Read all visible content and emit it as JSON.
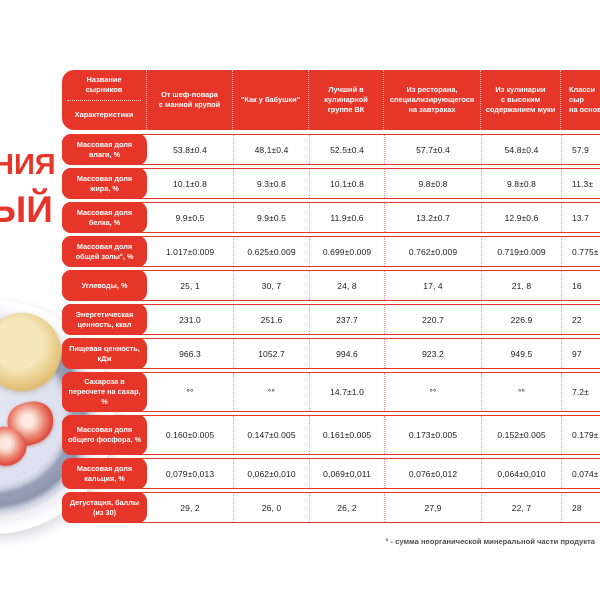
{
  "colors": {
    "accent_red": "#e6362a",
    "separator_dot": "#f0968a"
  },
  "heading": {
    "line1": "НИЯ",
    "line2": "ЫЙ"
  },
  "table": {
    "corner": {
      "top": "Название сырников",
      "bottom": "Характеристики"
    },
    "columns": [
      {
        "label": [
          "От шеф-повара",
          "с манной крупой"
        ]
      },
      {
        "label": [
          "\"Как у бабушки\""
        ]
      },
      {
        "label": [
          "Лучший в кулинарной",
          "группе ВК"
        ]
      },
      {
        "label": [
          "Из ресторана,",
          "специализирующегося",
          "на завтраках"
        ]
      },
      {
        "label": [
          "Из кулинарии",
          "с высоким",
          "содержанием муки"
        ]
      },
      {
        "label": [
          "Класси",
          "сыр",
          "на основ"
        ]
      }
    ],
    "rows": [
      {
        "label": "Массовая доля влаги, %",
        "values": [
          "53.8±0.4",
          "48.1±0.4",
          "52.5±0.4",
          "57.7±0.4",
          "54.8±0.4",
          "57.9"
        ]
      },
      {
        "label": "Массовая доля жира, %",
        "values": [
          "10.1±0.8",
          "9.3±0.8",
          "10.1±0.8",
          "9.8±0.8",
          "9.8±0.8",
          "11.3±"
        ]
      },
      {
        "label": "Массовая доля белка, %",
        "values": [
          "9.9±0.5",
          "9.9±0.5",
          "11.9±0.6",
          "13.2±0.7",
          "12.9±0.6",
          "13.7"
        ]
      },
      {
        "label": "Массовая доля общей золы°, %",
        "values": [
          "1.017±0.009",
          "0.625±0.009",
          "0.699±0.009",
          "0.762±0.009",
          "0.719±0.009",
          "0.775±"
        ]
      },
      {
        "label": "Углеводы, %",
        "values": [
          "25, 1",
          "30, 7",
          "24, 8",
          "17, 4",
          "21, 8",
          "16"
        ]
      },
      {
        "label": "Энергетическая ценность, ккал",
        "values": [
          "231.0",
          "251.6",
          "237.7",
          "220.7",
          "226.9",
          "22"
        ]
      },
      {
        "label": "Пищевая ценность, кДж",
        "values": [
          "966.3",
          "1052.7",
          "994.6",
          "923.2",
          "949.5",
          "97"
        ]
      },
      {
        "label": "Сахароза в пересчете на сахар, %",
        "size": "tall",
        "values": [
          "°°",
          "°°",
          "14.7±1.0",
          "°°",
          "°°",
          "7.2±"
        ]
      },
      {
        "label": "Массовая доля общего фосфора, %",
        "size": "tall",
        "values": [
          "0.160±0.005",
          "0.147±0.005",
          "0.161±0.005",
          "0.173±0.005",
          "0.152±0.005",
          "0.179±"
        ]
      },
      {
        "label": "Массовая доля кальция, %",
        "values": [
          "0,079±0,013",
          "0,062±0,010",
          "0,069±0,011",
          "0,076±0,012",
          "0,064±0,010",
          "0,074±"
        ]
      },
      {
        "label": "Дегустация, баллы (из 30)",
        "values": [
          "29, 2",
          "26, 0",
          "26, 2",
          "27,9",
          "22, 7",
          "28"
        ]
      }
    ]
  },
  "footnote": "° - сумма неорганической минеральной части продукта"
}
